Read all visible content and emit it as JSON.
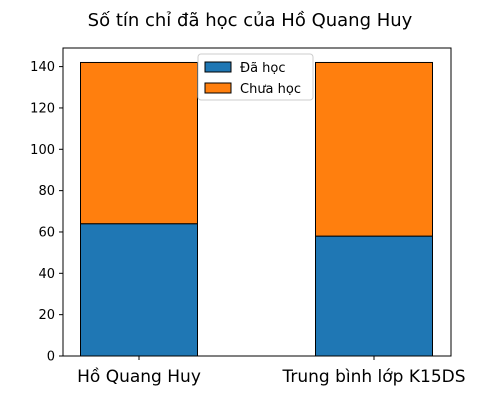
{
  "chart_data": {
    "type": "bar",
    "stacked": true,
    "title": "Số tín chỉ đã học của Hồ Quang Huy",
    "xlabel": "",
    "ylabel": "",
    "categories": [
      "Hồ Quang Huy",
      "Trung bình lớp K15DS"
    ],
    "series": [
      {
        "name": "Đã học",
        "values": [
          64,
          58
        ],
        "color": "#1f77b4"
      },
      {
        "name": "Chưa học",
        "values": [
          78,
          84
        ],
        "color": "#ff7f0e"
      }
    ],
    "ylim": [
      0,
      149
    ],
    "yticks": [
      0,
      20,
      40,
      60,
      80,
      100,
      120,
      140
    ],
    "grid": false,
    "legend_position": "top-center"
  }
}
